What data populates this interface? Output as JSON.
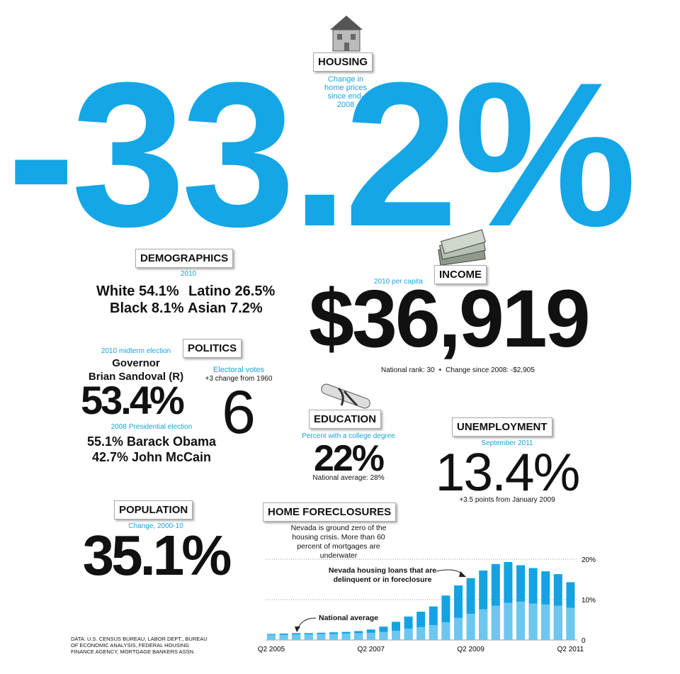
{
  "housing": {
    "title": "HOUSING",
    "note": "Change in home prices since end-2008",
    "value": "-33.2%"
  },
  "demographics": {
    "title": "DEMOGRAPHICS",
    "year": "2010",
    "items": [
      "White 54.1%",
      "Latino 26.5%",
      "Black 8.1%",
      "Asian 7.2%"
    ]
  },
  "income": {
    "title": "INCOME",
    "note": "2010 per capita",
    "value": "$36,919",
    "rank": "National rank: 30",
    "change": "Change since 2008: -$2,905"
  },
  "politics": {
    "title": "POLITICS",
    "midterm_label": "2010 midterm election",
    "governor_office": "Governor",
    "governor_name": "Brian Sandoval (R)",
    "governor_share": "53.4%",
    "electoral_label": "Electoral votes",
    "electoral_change": "+3 change from 1960",
    "electoral_votes": 6,
    "presidential_label": "2008 Presidential election",
    "results": [
      "55.1% Barack Obama",
      "42.7% John McCain"
    ]
  },
  "education": {
    "title": "EDUCATION",
    "note": "Percent with a college degree",
    "value": "22%",
    "national": "National average: 28%"
  },
  "unemployment": {
    "title": "UNEMPLOYMENT",
    "period": "September 2011",
    "value": "13.4%",
    "change": "+3.5 points from January 2009"
  },
  "population": {
    "title": "POPULATION",
    "note": "Change, 2000-10",
    "value": "35.1%"
  },
  "foreclosures": {
    "title": "HOME FORECLOSURES",
    "subtitle": "Nevada is ground zero of the housing crisis. More than 60 percent of mortgages are underwater"
  },
  "source": "DATA: U.S. CENSUS BUREAU, LABOR DEPT., BUREAU OF ECONOMIC ANALYSIS, FEDERAL HOUSING FINANCE AGENCY, MORTGAGE BANKERS ASSN.",
  "chart_data": {
    "type": "bar",
    "categories": [
      "Q2 2005",
      null,
      null,
      null,
      null,
      null,
      null,
      null,
      "Q2 2007",
      null,
      null,
      null,
      null,
      null,
      null,
      null,
      "Q2 2009",
      null,
      null,
      null,
      null,
      null,
      null,
      null,
      "Q2 2011"
    ],
    "series": [
      {
        "name": "Nevada housing loans that are delinquent or in foreclosure",
        "color": "#14a3e2",
        "values": [
          1.5,
          1.6,
          1.7,
          1.7,
          1.8,
          1.9,
          2.0,
          2.2,
          2.6,
          3.3,
          4.5,
          5.8,
          7.0,
          8.3,
          11.0,
          13.5,
          15.3,
          17.2,
          18.8,
          19.3,
          18.5,
          17.8,
          17.0,
          16.3,
          14.3
        ]
      },
      {
        "name": "National average",
        "color": "#6cc7ef",
        "values": [
          1.3,
          1.3,
          1.4,
          1.4,
          1.5,
          1.5,
          1.6,
          1.7,
          1.8,
          2.0,
          2.3,
          2.8,
          3.2,
          3.7,
          4.4,
          5.5,
          6.5,
          7.6,
          8.5,
          9.2,
          9.5,
          9.0,
          8.8,
          8.5,
          8.0
        ]
      }
    ],
    "ylim": [
      0,
      20
    ],
    "yticks": [
      {
        "value": 0,
        "label": "0"
      },
      {
        "value": 10,
        "label": "10%"
      },
      {
        "value": 20,
        "label": "20%"
      }
    ]
  }
}
